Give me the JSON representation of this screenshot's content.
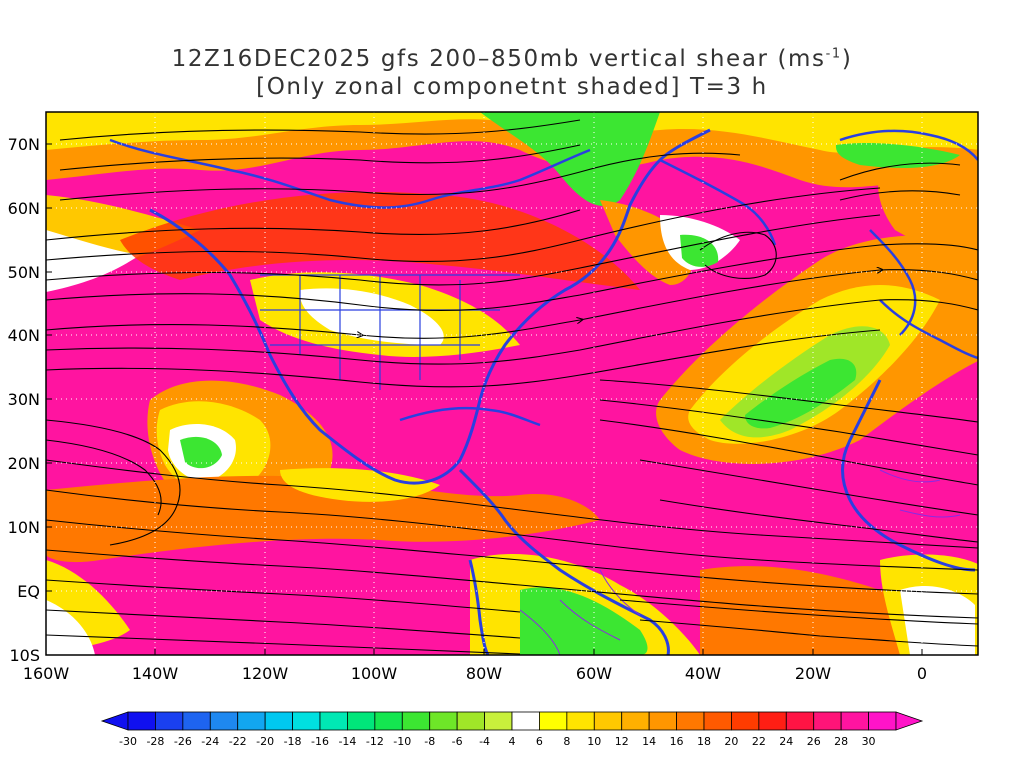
{
  "title": {
    "line1_prefix": "12Z16DEC2025 gfs 200–850mb vertical shear (ms",
    "line1_sup": "-1",
    "line1_suffix": ")",
    "line2": "[Only zonal componetnt shaded] T=3 h"
  },
  "map": {
    "lat_labels": [
      "70N",
      "60N",
      "50N",
      "40N",
      "30N",
      "20N",
      "10N",
      "EQ",
      "10S"
    ],
    "lat_values": [
      70,
      60,
      50,
      40,
      30,
      20,
      10,
      0,
      -10
    ],
    "lon_labels": [
      "160W",
      "140W",
      "120W",
      "100W",
      "80W",
      "60W",
      "40W",
      "20W",
      "0"
    ],
    "lon_values": [
      -160,
      -140,
      -120,
      -100,
      -80,
      -60,
      -40,
      -20,
      0
    ],
    "extent": {
      "lon_min": -160,
      "lon_max": 10,
      "lat_min": -10,
      "lat_max": 75
    },
    "coastline_color": "#2a3fe0",
    "border_color": "#8a2be2"
  },
  "colorbar": {
    "labels": [
      "-30",
      "-28",
      "-26",
      "-24",
      "-22",
      "-20",
      "-18",
      "-16",
      "-14",
      "-12",
      "-10",
      "-8",
      "-6",
      "-4",
      "4",
      "6",
      "8",
      "10",
      "12",
      "14",
      "16",
      "18",
      "20",
      "22",
      "24",
      "26",
      "28",
      "30"
    ],
    "colors": [
      "#1010f0",
      "#1a40f0",
      "#1e64f0",
      "#1e88f0",
      "#12a6f0",
      "#00c8f0",
      "#00e0e0",
      "#00e8b4",
      "#00e67a",
      "#14e650",
      "#3ce632",
      "#6ee628",
      "#a0e628",
      "#c8f03c",
      "#ffffff",
      "#ffff00",
      "#ffe400",
      "#ffc800",
      "#ffb000",
      "#ff9600",
      "#ff7800",
      "#ff5a00",
      "#ff3c00",
      "#ff1e14",
      "#ff1444",
      "#ff1478",
      "#ff14a0",
      "#ff14c8"
    ]
  }
}
